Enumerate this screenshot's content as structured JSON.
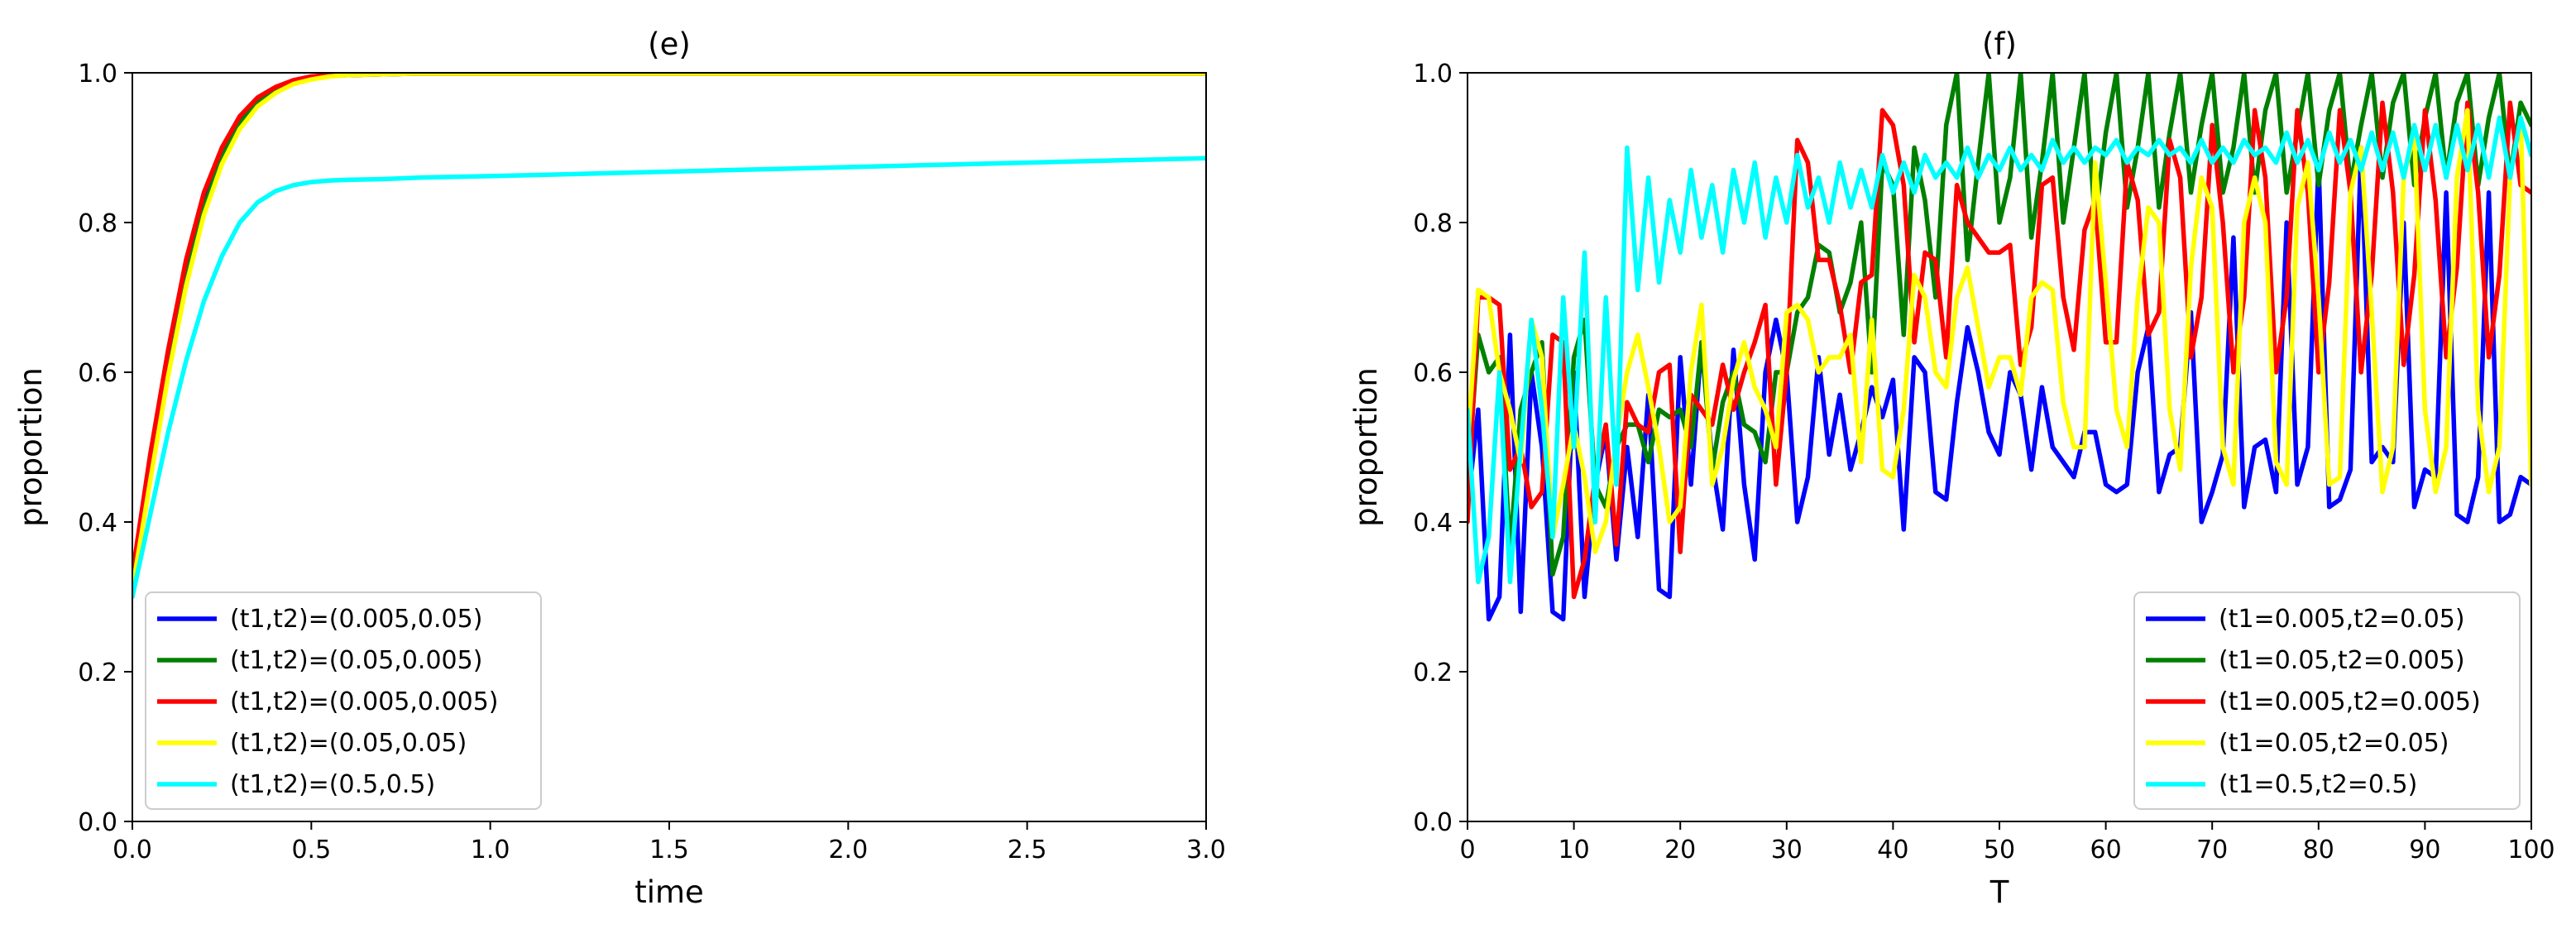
{
  "chart_data": [
    {
      "type": "line",
      "title": "(e)",
      "xlabel": "time",
      "ylabel": "proportion",
      "xlim": [
        0,
        3
      ],
      "ylim": [
        0,
        1
      ],
      "xticks": [
        "0.0",
        "0.5",
        "1.0",
        "1.5",
        "2.0",
        "2.5",
        "3.0"
      ],
      "xtick_values": [
        0,
        0.5,
        1,
        1.5,
        2,
        2.5,
        3
      ],
      "yticks": [
        "0.0",
        "0.2",
        "0.4",
        "0.6",
        "0.8",
        "1.0"
      ],
      "ytick_values": [
        0,
        0.2,
        0.4,
        0.6,
        0.8,
        1.0
      ],
      "grid": false,
      "legend_position": "lower-left",
      "series": [
        {
          "name": "(t1,t2)=(0.005,0.05)",
          "color": "#0000ff",
          "x": [
            0,
            0.05,
            0.1,
            0.15,
            0.2,
            0.25,
            0.3,
            0.35,
            0.4,
            0.45,
            0.5,
            0.55,
            0.6,
            0.7,
            0.8,
            1.0,
            1.5,
            2.0,
            2.5,
            3.0
          ],
          "y": [
            0.32,
            0.47,
            0.61,
            0.73,
            0.825,
            0.89,
            0.935,
            0.962,
            0.978,
            0.988,
            0.993,
            0.996,
            0.997,
            0.998,
            0.999,
            0.999,
            0.999,
            0.999,
            0.999,
            0.999
          ]
        },
        {
          "name": "(t1,t2)=(0.05,0.005)",
          "color": "#008000",
          "x": [
            0,
            0.05,
            0.1,
            0.15,
            0.2,
            0.25,
            0.3,
            0.35,
            0.4,
            0.45,
            0.5,
            0.55,
            0.6,
            0.7,
            0.8,
            1.0,
            1.5,
            2.0,
            2.5,
            3.0
          ],
          "y": [
            0.32,
            0.465,
            0.605,
            0.725,
            0.82,
            0.887,
            0.932,
            0.96,
            0.977,
            0.987,
            0.993,
            0.996,
            0.997,
            0.998,
            0.999,
            0.999,
            0.999,
            0.999,
            0.999,
            0.999
          ]
        },
        {
          "name": "(t1,t2)=(0.005,0.005)",
          "color": "#ff0000",
          "x": [
            0,
            0.05,
            0.1,
            0.15,
            0.2,
            0.25,
            0.3,
            0.35,
            0.4,
            0.45,
            0.5,
            0.55,
            0.6,
            0.7,
            0.8,
            1.0,
            1.5,
            2.0,
            2.5,
            3.0
          ],
          "y": [
            0.33,
            0.49,
            0.63,
            0.75,
            0.84,
            0.9,
            0.942,
            0.967,
            0.981,
            0.99,
            0.995,
            0.997,
            0.998,
            0.999,
            0.999,
            0.999,
            0.999,
            0.999,
            0.999,
            0.999
          ]
        },
        {
          "name": "(t1,t2)=(0.05,0.05)",
          "color": "#ffff00",
          "x": [
            0,
            0.05,
            0.1,
            0.15,
            0.2,
            0.25,
            0.3,
            0.35,
            0.4,
            0.45,
            0.5,
            0.55,
            0.6,
            0.7,
            0.8,
            1.0,
            1.5,
            2.0,
            2.5,
            3.0
          ],
          "y": [
            0.31,
            0.455,
            0.595,
            0.715,
            0.81,
            0.878,
            0.925,
            0.955,
            0.973,
            0.985,
            0.991,
            0.995,
            0.997,
            0.998,
            0.999,
            0.999,
            0.999,
            0.999,
            0.999,
            0.999
          ]
        },
        {
          "name": "(t1,t2)=(0.5,0.5)",
          "color": "#00ffff",
          "x": [
            0,
            0.05,
            0.1,
            0.15,
            0.2,
            0.25,
            0.3,
            0.35,
            0.4,
            0.45,
            0.5,
            0.55,
            0.6,
            0.7,
            0.8,
            1.0,
            1.25,
            1.5,
            1.75,
            2.0,
            2.25,
            2.5,
            2.75,
            3.0
          ],
          "y": [
            0.3,
            0.41,
            0.52,
            0.615,
            0.695,
            0.755,
            0.8,
            0.827,
            0.842,
            0.85,
            0.854,
            0.856,
            0.857,
            0.858,
            0.86,
            0.862,
            0.865,
            0.868,
            0.871,
            0.874,
            0.877,
            0.88,
            0.883,
            0.886
          ]
        }
      ]
    },
    {
      "type": "line",
      "title": "(f)",
      "xlabel": "T",
      "ylabel": "proportion",
      "xlim": [
        0,
        100
      ],
      "ylim": [
        0,
        1
      ],
      "xticks": [
        "0",
        "10",
        "20",
        "30",
        "40",
        "50",
        "60",
        "70",
        "80",
        "90",
        "100"
      ],
      "xtick_values": [
        0,
        10,
        20,
        30,
        40,
        50,
        60,
        70,
        80,
        90,
        100
      ],
      "yticks": [
        "0.0",
        "0.2",
        "0.4",
        "0.6",
        "0.8",
        "1.0"
      ],
      "ytick_values": [
        0,
        0.2,
        0.4,
        0.6,
        0.8,
        1.0
      ],
      "grid": false,
      "legend_position": "lower-right",
      "x": [
        0,
        1,
        2,
        3,
        4,
        5,
        6,
        7,
        8,
        9,
        10,
        11,
        12,
        13,
        14,
        15,
        16,
        17,
        18,
        19,
        20,
        21,
        22,
        23,
        24,
        25,
        26,
        27,
        28,
        29,
        30,
        31,
        32,
        33,
        34,
        35,
        36,
        37,
        38,
        39,
        40,
        41,
        42,
        43,
        44,
        45,
        46,
        47,
        48,
        49,
        50,
        51,
        52,
        53,
        54,
        55,
        56,
        57,
        58,
        59,
        60,
        61,
        62,
        63,
        64,
        65,
        66,
        67,
        68,
        69,
        70,
        71,
        72,
        73,
        74,
        75,
        76,
        77,
        78,
        79,
        80,
        81,
        82,
        83,
        84,
        85,
        86,
        87,
        88,
        89,
        90,
        91,
        92,
        93,
        94,
        95,
        96,
        97,
        98,
        99,
        100
      ],
      "series": [
        {
          "name": "(t1=0.005,t2=0.05)",
          "color": "#0000ff",
          "y": [
            0.42,
            0.55,
            0.27,
            0.3,
            0.65,
            0.28,
            0.6,
            0.5,
            0.28,
            0.27,
            0.6,
            0.3,
            0.45,
            0.52,
            0.35,
            0.5,
            0.38,
            0.57,
            0.31,
            0.3,
            0.62,
            0.45,
            0.64,
            0.48,
            0.39,
            0.63,
            0.45,
            0.35,
            0.6,
            0.67,
            0.6,
            0.4,
            0.46,
            0.62,
            0.49,
            0.57,
            0.47,
            0.52,
            0.58,
            0.54,
            0.59,
            0.39,
            0.62,
            0.6,
            0.44,
            0.43,
            0.56,
            0.66,
            0.6,
            0.52,
            0.49,
            0.6,
            0.57,
            0.47,
            0.58,
            0.5,
            0.48,
            0.46,
            0.52,
            0.52,
            0.45,
            0.44,
            0.45,
            0.6,
            0.66,
            0.44,
            0.49,
            0.5,
            0.68,
            0.4,
            0.44,
            0.49,
            0.78,
            0.42,
            0.5,
            0.51,
            0.44,
            0.8,
            0.45,
            0.5,
            0.88,
            0.42,
            0.43,
            0.47,
            0.9,
            0.48,
            0.5,
            0.48,
            0.8,
            0.42,
            0.47,
            0.46,
            0.84,
            0.41,
            0.4,
            0.46,
            0.84,
            0.4,
            0.41,
            0.46,
            0.45
          ]
        },
        {
          "name": "(t1=0.05,t2=0.005)",
          "color": "#008000",
          "y": [
            0.45,
            0.65,
            0.6,
            0.62,
            0.36,
            0.55,
            0.6,
            0.64,
            0.33,
            0.38,
            0.62,
            0.67,
            0.45,
            0.42,
            0.5,
            0.53,
            0.53,
            0.48,
            0.55,
            0.54,
            0.55,
            0.5,
            0.64,
            0.47,
            0.56,
            0.6,
            0.53,
            0.52,
            0.48,
            0.6,
            0.6,
            0.68,
            0.7,
            0.77,
            0.76,
            0.68,
            0.72,
            0.8,
            0.6,
            0.88,
            0.85,
            0.65,
            0.9,
            0.83,
            0.7,
            0.93,
            1.0,
            0.75,
            0.88,
            1.0,
            0.8,
            0.86,
            1.0,
            0.78,
            0.88,
            1.0,
            0.8,
            0.9,
            1.0,
            0.8,
            0.92,
            1.0,
            0.82,
            0.9,
            1.0,
            0.82,
            0.92,
            1.0,
            0.84,
            0.93,
            1.0,
            0.84,
            0.9,
            1.0,
            0.84,
            0.95,
            1.0,
            0.84,
            0.92,
            1.0,
            0.85,
            0.95,
            1.0,
            0.85,
            0.93,
            1.0,
            0.86,
            0.96,
            1.0,
            0.85,
            0.94,
            1.0,
            0.86,
            0.96,
            1.0,
            0.85,
            0.94,
            1.0,
            0.86,
            0.96,
            0.93
          ]
        },
        {
          "name": "(t1=0.005,t2=0.005)",
          "color": "#ff0000",
          "y": [
            0.4,
            0.7,
            0.7,
            0.69,
            0.47,
            0.5,
            0.42,
            0.44,
            0.65,
            0.64,
            0.3,
            0.35,
            0.46,
            0.53,
            0.37,
            0.56,
            0.53,
            0.52,
            0.6,
            0.61,
            0.36,
            0.57,
            0.55,
            0.53,
            0.61,
            0.55,
            0.6,
            0.64,
            0.69,
            0.45,
            0.6,
            0.91,
            0.88,
            0.75,
            0.75,
            0.69,
            0.6,
            0.72,
            0.73,
            0.95,
            0.93,
            0.85,
            0.64,
            0.76,
            0.75,
            0.62,
            0.85,
            0.8,
            0.78,
            0.76,
            0.76,
            0.77,
            0.61,
            0.66,
            0.85,
            0.86,
            0.7,
            0.63,
            0.79,
            0.83,
            0.64,
            0.64,
            0.88,
            0.83,
            0.65,
            0.68,
            0.91,
            0.86,
            0.62,
            0.7,
            0.93,
            0.8,
            0.6,
            0.7,
            0.95,
            0.86,
            0.6,
            0.7,
            0.95,
            0.84,
            0.6,
            0.72,
            0.95,
            0.84,
            0.6,
            0.73,
            0.96,
            0.84,
            0.61,
            0.73,
            0.95,
            0.83,
            0.62,
            0.74,
            0.96,
            0.84,
            0.62,
            0.73,
            0.96,
            0.85,
            0.84
          ]
        },
        {
          "name": "(t1=0.05,t2=0.05)",
          "color": "#ffff00",
          "y": [
            0.5,
            0.71,
            0.7,
            0.6,
            0.55,
            0.48,
            0.67,
            0.62,
            0.38,
            0.45,
            0.53,
            0.46,
            0.36,
            0.4,
            0.51,
            0.6,
            0.65,
            0.58,
            0.5,
            0.4,
            0.42,
            0.6,
            0.69,
            0.45,
            0.5,
            0.59,
            0.64,
            0.58,
            0.55,
            0.5,
            0.68,
            0.69,
            0.67,
            0.6,
            0.62,
            0.62,
            0.65,
            0.48,
            0.67,
            0.47,
            0.46,
            0.55,
            0.73,
            0.7,
            0.6,
            0.58,
            0.7,
            0.74,
            0.66,
            0.58,
            0.62,
            0.62,
            0.57,
            0.7,
            0.72,
            0.71,
            0.56,
            0.5,
            0.5,
            0.88,
            0.72,
            0.55,
            0.5,
            0.7,
            0.82,
            0.8,
            0.55,
            0.47,
            0.74,
            0.86,
            0.82,
            0.5,
            0.45,
            0.8,
            0.86,
            0.8,
            0.48,
            0.45,
            0.82,
            0.88,
            0.7,
            0.45,
            0.46,
            0.84,
            0.9,
            0.68,
            0.44,
            0.5,
            0.86,
            0.92,
            0.55,
            0.44,
            0.5,
            0.86,
            0.95,
            0.55,
            0.44,
            0.5,
            0.86,
            0.94,
            0.45
          ]
        },
        {
          "name": "(t1=0.5,t2=0.5)",
          "color": "#00ffff",
          "y": [
            0.55,
            0.32,
            0.38,
            0.6,
            0.32,
            0.5,
            0.67,
            0.55,
            0.38,
            0.7,
            0.5,
            0.76,
            0.4,
            0.7,
            0.45,
            0.9,
            0.71,
            0.86,
            0.72,
            0.83,
            0.76,
            0.87,
            0.78,
            0.85,
            0.76,
            0.87,
            0.8,
            0.88,
            0.78,
            0.86,
            0.8,
            0.89,
            0.82,
            0.86,
            0.8,
            0.88,
            0.82,
            0.87,
            0.82,
            0.89,
            0.84,
            0.88,
            0.84,
            0.89,
            0.86,
            0.88,
            0.86,
            0.9,
            0.86,
            0.89,
            0.87,
            0.9,
            0.87,
            0.89,
            0.87,
            0.91,
            0.88,
            0.9,
            0.88,
            0.9,
            0.89,
            0.91,
            0.88,
            0.9,
            0.89,
            0.91,
            0.89,
            0.9,
            0.88,
            0.91,
            0.88,
            0.9,
            0.88,
            0.91,
            0.89,
            0.9,
            0.88,
            0.92,
            0.88,
            0.91,
            0.87,
            0.92,
            0.88,
            0.91,
            0.87,
            0.92,
            0.87,
            0.92,
            0.86,
            0.93,
            0.87,
            0.93,
            0.86,
            0.93,
            0.87,
            0.93,
            0.86,
            0.94,
            0.86,
            0.94,
            0.89
          ]
        }
      ]
    }
  ]
}
